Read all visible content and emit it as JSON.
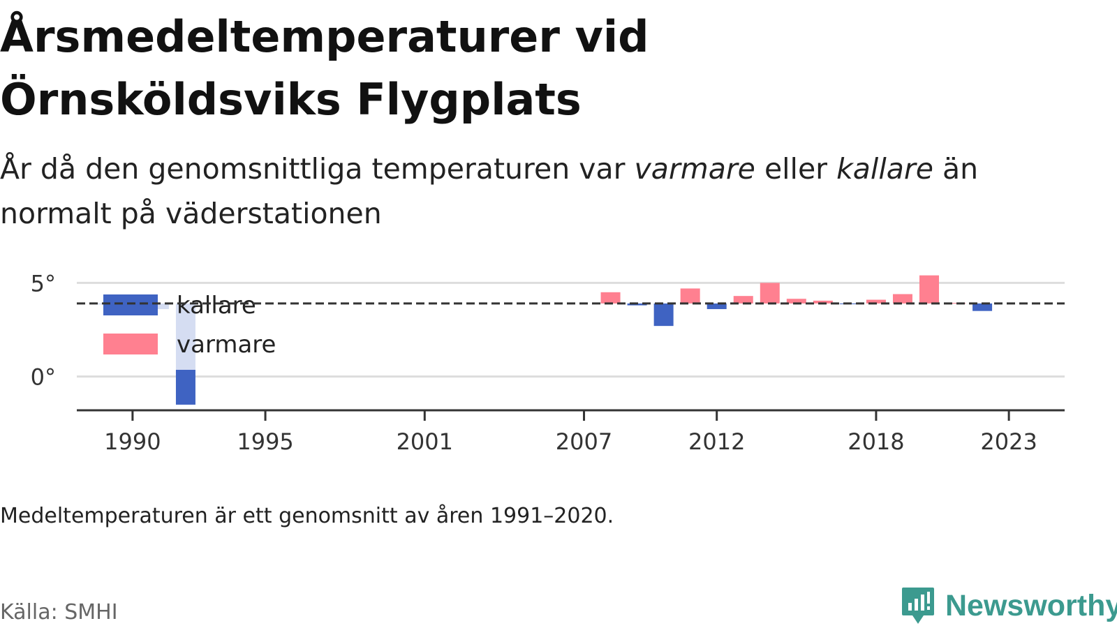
{
  "header": {
    "title_line1": "Årsmedeltemperaturer vid",
    "title_line2": "Örnsköldsviks Flygplats",
    "subtitle_part1": "År då den genomsnittliga temperaturen var ",
    "subtitle_warm": "varmare",
    "subtitle_part2": " eller ",
    "subtitle_cold": "kallare",
    "subtitle_part3": " än normalt på väderstationen"
  },
  "chart_data": {
    "type": "bar",
    "baseline": 3.9,
    "ylim": [
      -1.8,
      5.2
    ],
    "xlim": [
      1987.9,
      2025.1
    ],
    "yticks": [
      {
        "value": 0,
        "label": "0°"
      },
      {
        "value": 5,
        "label": "5°"
      }
    ],
    "xticks": [
      1990,
      1995,
      2001,
      2007,
      2012,
      2018,
      2023
    ],
    "grid": true,
    "legend_position": "top-left",
    "legend": [
      {
        "key": "cold",
        "label": "kallare"
      },
      {
        "key": "warm",
        "label": "varmare"
      }
    ],
    "x": [
      1989,
      1990,
      1991,
      1992,
      2008,
      2009,
      2010,
      2011,
      2012,
      2013,
      2014,
      2015,
      2016,
      2017,
      2018,
      2019,
      2020,
      2021,
      2022
    ],
    "values": [
      3.85,
      4.0,
      3.6,
      -1.5,
      4.5,
      3.8,
      2.7,
      4.7,
      3.6,
      4.3,
      5.0,
      4.15,
      4.05,
      3.88,
      4.1,
      4.4,
      5.4,
      3.93,
      3.5
    ]
  },
  "colors": {
    "cold": "#3f63c2",
    "warm": "#ff8090",
    "grid": "#dddddd",
    "axis": "#333333",
    "baseline": "#333333",
    "brand": "#3c9a8f"
  },
  "footer": {
    "note": "Medeltemperaturen är ett genomsnitt av åren 1991–2020.",
    "source": "Källa: SMHI",
    "brand": "Newsworthy",
    "brand_icon": "newsworthy-logo-icon"
  }
}
